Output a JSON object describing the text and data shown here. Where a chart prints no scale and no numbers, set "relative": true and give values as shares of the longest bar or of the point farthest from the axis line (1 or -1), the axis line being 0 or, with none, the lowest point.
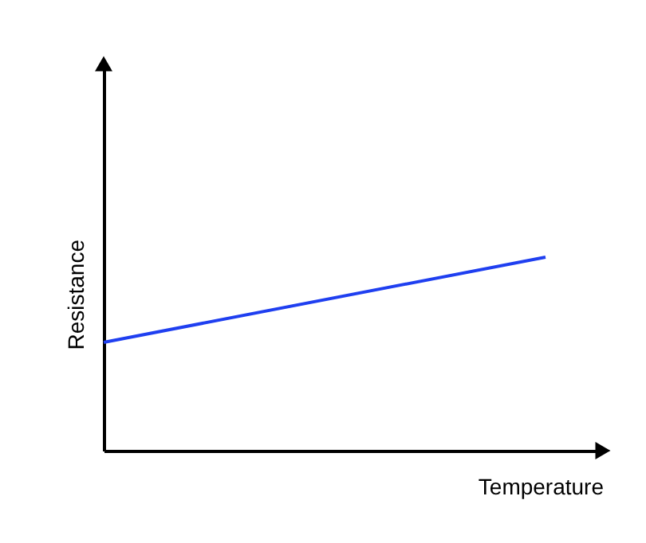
{
  "chart_data": {
    "type": "line",
    "xlabel": "Temperature",
    "ylabel": "Resistance",
    "relative": true,
    "categories": [
      null,
      null
    ],
    "series": [
      {
        "color": "#1f3ff0",
        "values": [
          0.56,
          1
        ]
      }
    ],
    "marker": "none",
    "line_style": "solid",
    "grid": false,
    "legend": false,
    "tick_labels": false
  }
}
